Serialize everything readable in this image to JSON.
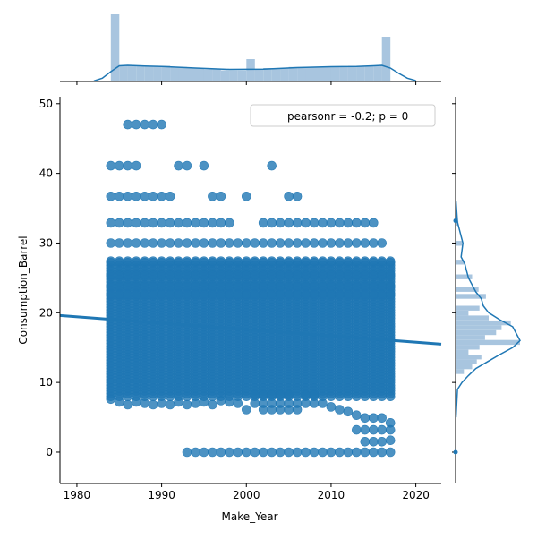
{
  "chart_data": {
    "type": "scatter",
    "title": "",
    "xlabel": "Make_Year",
    "ylabel": "Consumption_Barrel",
    "xlim": [
      1978,
      2023
    ],
    "ylim": [
      -4.5,
      51
    ],
    "xticks": [
      1980,
      1990,
      2000,
      2010,
      2020
    ],
    "yticks": [
      0,
      10,
      20,
      30,
      40,
      50
    ],
    "annotation": "pearsonr = -0.2; p = 0",
    "legend_position": "top-right",
    "point_color": "#1f77b4",
    "hist_color": "#9ebfdc",
    "x_range": [
      1984,
      2017
    ],
    "main_band": [
      8,
      27.4
    ],
    "band_levels": [
      {
        "y": 27.4,
        "from": 1984,
        "to": 2017
      },
      {
        "y": 25.4,
        "from": 1984,
        "to": 2017
      },
      {
        "y": 23.8,
        "from": 1984,
        "to": 2017
      },
      {
        "y": 22.6,
        "from": 1984,
        "to": 2017
      }
    ],
    "upper_levels": [
      {
        "y": 30.0,
        "years": [
          1984,
          1985,
          1986,
          1987,
          1988,
          1989,
          1990,
          1991,
          1992,
          1993,
          1994,
          1995,
          1996,
          1997,
          1998,
          1999,
          2000,
          2001,
          2002,
          2003,
          2004,
          2005,
          2006,
          2007,
          2008,
          2009,
          2010,
          2011,
          2012,
          2013,
          2014,
          2015,
          2016
        ]
      },
      {
        "y": 32.9,
        "years": [
          1984,
          1985,
          1986,
          1987,
          1988,
          1989,
          1990,
          1991,
          1992,
          1993,
          1994,
          1995,
          1996,
          1997,
          1998,
          2002,
          2003,
          2004,
          2005,
          2006,
          2007,
          2008,
          2009,
          2010,
          2011,
          2012,
          2013,
          2014,
          2015
        ]
      },
      {
        "y": 36.7,
        "years": [
          1984,
          1985,
          1986,
          1987,
          1988,
          1989,
          1990,
          1991,
          1996,
          1997,
          2000,
          2005,
          2006
        ]
      },
      {
        "y": 41.1,
        "years": [
          1984,
          1985,
          1986,
          1987,
          1992,
          1993,
          1995,
          2003
        ]
      },
      {
        "y": 47.0,
        "years": [
          1986,
          1987,
          1988,
          1989,
          1990
        ]
      }
    ],
    "lower_points": [
      {
        "x": 1984,
        "y": 7.6
      },
      {
        "x": 1985,
        "y": 7.2
      },
      {
        "x": 1986,
        "y": 6.8
      },
      {
        "x": 1987,
        "y": 7.2
      },
      {
        "x": 1988,
        "y": 7.0
      },
      {
        "x": 1989,
        "y": 6.8
      },
      {
        "x": 1990,
        "y": 7.0
      },
      {
        "x": 1991,
        "y": 6.8
      },
      {
        "x": 1992,
        "y": 7.2
      },
      {
        "x": 1993,
        "y": 6.8
      },
      {
        "x": 1994,
        "y": 7.0
      },
      {
        "x": 1995,
        "y": 7.2
      },
      {
        "x": 1996,
        "y": 6.8
      },
      {
        "x": 1997,
        "y": 7.4
      },
      {
        "x": 1998,
        "y": 7.2
      },
      {
        "x": 1999,
        "y": 7.0
      },
      {
        "x": 2000,
        "y": 6.1
      },
      {
        "x": 2001,
        "y": 7.0
      },
      {
        "x": 2001,
        "y": 8.2
      },
      {
        "x": 2002,
        "y": 6.1
      },
      {
        "x": 2002,
        "y": 7.0
      },
      {
        "x": 2002,
        "y": 8.2
      },
      {
        "x": 2003,
        "y": 6.1
      },
      {
        "x": 2003,
        "y": 7.0
      },
      {
        "x": 2003,
        "y": 8.2
      },
      {
        "x": 2004,
        "y": 6.1
      },
      {
        "x": 2004,
        "y": 7.0
      },
      {
        "x": 2004,
        "y": 8.2
      },
      {
        "x": 2005,
        "y": 6.1
      },
      {
        "x": 2005,
        "y": 7.0
      },
      {
        "x": 2005,
        "y": 8.2
      },
      {
        "x": 2006,
        "y": 6.1
      },
      {
        "x": 2006,
        "y": 7.0
      },
      {
        "x": 2007,
        "y": 7.0
      },
      {
        "x": 2007,
        "y": 8.2
      },
      {
        "x": 2008,
        "y": 7.0
      },
      {
        "x": 2008,
        "y": 8.2
      },
      {
        "x": 2009,
        "y": 7.0
      },
      {
        "x": 2010,
        "y": 6.5
      },
      {
        "x": 2011,
        "y": 6.1
      },
      {
        "x": 2012,
        "y": 5.8
      },
      {
        "x": 2013,
        "y": 5.3
      },
      {
        "x": 2013,
        "y": 3.2
      },
      {
        "x": 2014,
        "y": 4.9
      },
      {
        "x": 2014,
        "y": 3.2
      },
      {
        "x": 2014,
        "y": 1.5
      },
      {
        "x": 2015,
        "y": 4.9
      },
      {
        "x": 2015,
        "y": 3.2
      },
      {
        "x": 2015,
        "y": 1.5
      },
      {
        "x": 2016,
        "y": 4.9
      },
      {
        "x": 2016,
        "y": 3.2
      },
      {
        "x": 2016,
        "y": 1.5
      },
      {
        "x": 2017,
        "y": 4.2
      },
      {
        "x": 2017,
        "y": 3.2
      },
      {
        "x": 2017,
        "y": 1.7
      }
    ],
    "zero_points": [
      1993,
      1994,
      1995,
      1996,
      1997,
      1998,
      1999,
      2000,
      2001,
      2002,
      2003,
      2004,
      2005,
      2006,
      2007,
      2008,
      2009,
      2010,
      2011,
      2012,
      2013,
      2014,
      2015,
      2016,
      2017
    ],
    "regression": {
      "x": [
        1978,
        2023
      ],
      "y": [
        19.6,
        15.5
      ]
    },
    "top_hist": {
      "bin_edges": [
        1984,
        2017
      ],
      "bins": 33,
      "counts": [
        30,
        7,
        7,
        7,
        7,
        7,
        7,
        6.5,
        6.5,
        6,
        6,
        5.5,
        5.5,
        5,
        5,
        5,
        10,
        5.5,
        6,
        6,
        6,
        6.5,
        6.5,
        6.5,
        6.5,
        6.5,
        6.5,
        6.5,
        7,
        7,
        7,
        7,
        20
      ],
      "kde_x": [
        1982,
        1983,
        1984,
        1985,
        1986,
        1988,
        1990,
        1994,
        1998,
        2002,
        2006,
        2010,
        2013,
        2015,
        2016,
        2017,
        2018,
        2019,
        2020
      ],
      "kde_y": [
        0.3,
        1.5,
        4.4,
        7.0,
        7.2,
        6.9,
        6.7,
        6.0,
        5.4,
        5.5,
        6.2,
        6.6,
        6.7,
        7.0,
        7.2,
        6.0,
        3.6,
        1.5,
        0.4
      ]
    },
    "right_hist": {
      "bins": [
        {
          "y0": 11.2,
          "y1": 11.9,
          "count": 9
        },
        {
          "y0": 11.9,
          "y1": 12.6,
          "count": 18
        },
        {
          "y0": 12.6,
          "y1": 13.3,
          "count": 23
        },
        {
          "y0": 13.3,
          "y1": 14.0,
          "count": 28
        },
        {
          "y0": 14.0,
          "y1": 14.7,
          "count": 14
        },
        {
          "y0": 14.7,
          "y1": 15.4,
          "count": 26
        },
        {
          "y0": 15.4,
          "y1": 16.1,
          "count": 70
        },
        {
          "y0": 16.1,
          "y1": 16.8,
          "count": 32
        },
        {
          "y0": 16.8,
          "y1": 17.5,
          "count": 44
        },
        {
          "y0": 17.5,
          "y1": 18.2,
          "count": 50
        },
        {
          "y0": 18.2,
          "y1": 18.9,
          "count": 60
        },
        {
          "y0": 18.9,
          "y1": 19.6,
          "count": 36
        },
        {
          "y0": 19.6,
          "y1": 20.3,
          "count": 14
        },
        {
          "y0": 20.3,
          "y1": 21.0,
          "count": 26
        },
        {
          "y0": 22.0,
          "y1": 22.7,
          "count": 33
        },
        {
          "y0": 23.0,
          "y1": 23.7,
          "count": 25
        },
        {
          "y0": 24.8,
          "y1": 25.5,
          "count": 18
        },
        {
          "y0": 26.9,
          "y1": 27.6,
          "count": 9
        },
        {
          "y0": 29.6,
          "y1": 30.3,
          "count": 7
        },
        {
          "y0": 32.5,
          "y1": 33.2,
          "count": 3
        }
      ],
      "kde_y": [
        5,
        9,
        10,
        11,
        12,
        13,
        14,
        15,
        16,
        17,
        18,
        19,
        20,
        21,
        22,
        23,
        24,
        25,
        26,
        27,
        28,
        30,
        33,
        36
      ],
      "kde_x": [
        0.5,
        2,
        7,
        14,
        22,
        35,
        48,
        62,
        70,
        66,
        62,
        48,
        36,
        30,
        28,
        22,
        18,
        14,
        12,
        10,
        6,
        8,
        2,
        0.5
      ]
    }
  }
}
